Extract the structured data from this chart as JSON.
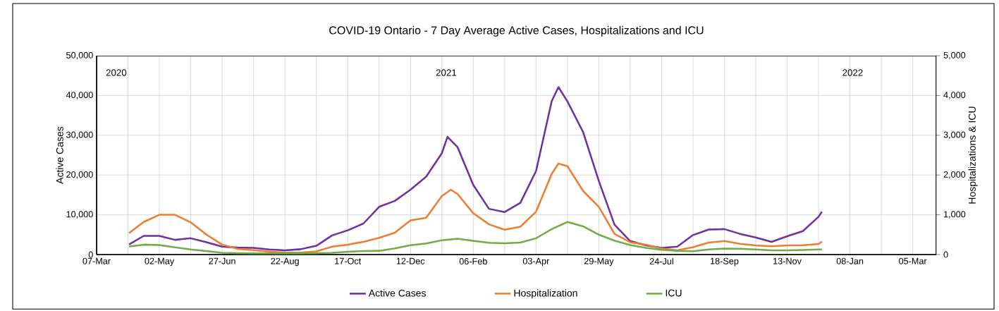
{
  "chart_data": {
    "type": "line",
    "title": "COVID-19 Ontario - 7 Day Average Active Cases, Hospitalizations and ICU",
    "ylabel": "Active Cases",
    "y2label": "Hospitalizations & ICU",
    "annotations": [
      "2020",
      "2021",
      "2022"
    ],
    "xlim": [
      "2020-03-07",
      "2022-03-26"
    ],
    "xticks": [
      {
        "value": "2020-03-07",
        "label": "07-Mar"
      },
      {
        "value": "2020-04-04",
        "label": null
      },
      {
        "value": "2020-05-02",
        "label": "02-May"
      },
      {
        "value": "2020-05-30",
        "label": null
      },
      {
        "value": "2020-06-27",
        "label": "27-Jun"
      },
      {
        "value": "2020-07-25",
        "label": null
      },
      {
        "value": "2020-08-22",
        "label": "22-Aug"
      },
      {
        "value": "2020-09-19",
        "label": null
      },
      {
        "value": "2020-10-17",
        "label": "17-Oct"
      },
      {
        "value": "2020-11-14",
        "label": null
      },
      {
        "value": "2020-12-12",
        "label": "12-Dec"
      },
      {
        "value": "2021-01-09",
        "label": null
      },
      {
        "value": "2021-02-06",
        "label": "06-Feb"
      },
      {
        "value": "2021-03-06",
        "label": null
      },
      {
        "value": "2021-04-03",
        "label": "03-Apr"
      },
      {
        "value": "2021-05-01",
        "label": null
      },
      {
        "value": "2021-05-29",
        "label": "29-May"
      },
      {
        "value": "2021-06-26",
        "label": null
      },
      {
        "value": "2021-07-24",
        "label": "24-Jul"
      },
      {
        "value": "2021-08-21",
        "label": null
      },
      {
        "value": "2021-09-18",
        "label": "18-Sep"
      },
      {
        "value": "2021-10-16",
        "label": null
      },
      {
        "value": "2021-11-13",
        "label": "13-Nov"
      },
      {
        "value": "2021-12-11",
        "label": null
      },
      {
        "value": "2022-01-08",
        "label": "08-Jan"
      },
      {
        "value": "2022-02-05",
        "label": null
      },
      {
        "value": "2022-03-05",
        "label": "05-Mar"
      }
    ],
    "ylim": [
      0,
      50000
    ],
    "yticks": [
      0,
      {
        "value": 10000,
        "label": "10,000"
      },
      {
        "value": 20000,
        "label": "20,000"
      },
      {
        "value": 30000,
        "label": "30,000"
      },
      {
        "value": 40000,
        "label": "40,000"
      },
      {
        "value": 50000,
        "label": "50,000"
      }
    ],
    "y2lim": [
      0,
      5000
    ],
    "y2ticks": [
      0,
      {
        "value": 1000,
        "label": "1,000"
      },
      {
        "value": 2000,
        "label": "2,000"
      },
      {
        "value": 3000,
        "label": "3,000"
      },
      {
        "value": 4000,
        "label": "4,000"
      },
      {
        "value": 5000,
        "label": "5,000"
      }
    ],
    "grid": true,
    "legend": "bottom",
    "marker": "none",
    "line_style": "solid",
    "series": [
      {
        "name": "Active Cases",
        "color": "#7030a0",
        "x": [
          "2020-04-05",
          "2020-04-18",
          "2020-05-02",
          "2020-05-16",
          "2020-05-30",
          "2020-06-13",
          "2020-06-27",
          "2020-07-11",
          "2020-07-25",
          "2020-08-08",
          "2020-08-22",
          "2020-09-05",
          "2020-09-19",
          "2020-10-03",
          "2020-10-17",
          "2020-10-31",
          "2020-11-14",
          "2020-11-28",
          "2020-12-12",
          "2020-12-26",
          "2021-01-09",
          "2021-01-14",
          "2021-01-23",
          "2021-02-06",
          "2021-02-20",
          "2021-03-06",
          "2021-03-20",
          "2021-04-03",
          "2021-04-17",
          "2021-04-23",
          "2021-05-01",
          "2021-05-15",
          "2021-05-29",
          "2021-06-12",
          "2021-06-26",
          "2021-07-10",
          "2021-07-24",
          "2021-08-07",
          "2021-08-21",
          "2021-09-04",
          "2021-09-18",
          "2021-10-02",
          "2021-10-16",
          "2021-10-30",
          "2021-11-13",
          "2021-11-27",
          "2021-12-11",
          "2021-12-14"
        ],
        "values": [
          2540,
          4700,
          4700,
          3700,
          4100,
          3100,
          2000,
          1750,
          1700,
          1300,
          1050,
          1350,
          2200,
          4800,
          6100,
          7800,
          12000,
          13500,
          16300,
          19600,
          25500,
          29600,
          27000,
          17500,
          11500,
          10700,
          13000,
          21000,
          38600,
          42100,
          38500,
          30800,
          18500,
          7500,
          3400,
          2300,
          1700,
          2000,
          4900,
          6300,
          6400,
          5200,
          4300,
          3200,
          4600,
          5900,
          9500,
          10800
        ]
      },
      {
        "name": "Hospitalization",
        "color": "#ed7d31",
        "axis": "y2",
        "x": [
          "2020-04-05",
          "2020-04-18",
          "2020-05-02",
          "2020-05-16",
          "2020-05-30",
          "2020-06-13",
          "2020-06-27",
          "2020-07-11",
          "2020-07-25",
          "2020-08-08",
          "2020-08-22",
          "2020-09-05",
          "2020-09-19",
          "2020-10-03",
          "2020-10-17",
          "2020-10-31",
          "2020-11-14",
          "2020-11-28",
          "2020-12-12",
          "2020-12-26",
          "2021-01-09",
          "2021-01-17",
          "2021-01-23",
          "2021-02-06",
          "2021-02-20",
          "2021-03-06",
          "2021-03-20",
          "2021-04-03",
          "2021-04-17",
          "2021-04-23",
          "2021-05-01",
          "2021-05-15",
          "2021-05-29",
          "2021-06-12",
          "2021-06-26",
          "2021-07-10",
          "2021-07-24",
          "2021-08-07",
          "2021-08-21",
          "2021-09-04",
          "2021-09-18",
          "2021-10-02",
          "2021-10-16",
          "2021-10-30",
          "2021-11-13",
          "2021-11-27",
          "2021-12-11",
          "2021-12-14"
        ],
        "values": [
          540,
          820,
          1000,
          1000,
          810,
          500,
          250,
          140,
          110,
          75,
          47,
          50,
          80,
          200,
          250,
          320,
          420,
          550,
          860,
          925,
          1470,
          1630,
          1520,
          1040,
          760,
          625,
          700,
          1080,
          2030,
          2290,
          2220,
          1600,
          1200,
          520,
          310,
          250,
          150,
          105,
          185,
          300,
          340,
          270,
          230,
          210,
          230,
          235,
          265,
          325
        ]
      },
      {
        "name": "ICU",
        "color": "#70ad47",
        "axis": "y2",
        "x": [
          "2020-04-05",
          "2020-04-18",
          "2020-05-02",
          "2020-05-16",
          "2020-05-30",
          "2020-06-13",
          "2020-06-27",
          "2020-07-11",
          "2020-07-25",
          "2020-08-08",
          "2020-08-22",
          "2020-09-05",
          "2020-09-19",
          "2020-10-03",
          "2020-10-17",
          "2020-10-31",
          "2020-11-14",
          "2020-11-28",
          "2020-12-12",
          "2020-12-26",
          "2021-01-09",
          "2021-01-23",
          "2021-02-06",
          "2021-02-20",
          "2021-03-06",
          "2021-03-20",
          "2021-04-03",
          "2021-04-17",
          "2021-05-01",
          "2021-05-15",
          "2021-05-29",
          "2021-06-12",
          "2021-06-26",
          "2021-07-10",
          "2021-07-24",
          "2021-08-07",
          "2021-08-21",
          "2021-09-04",
          "2021-09-18",
          "2021-10-02",
          "2021-10-16",
          "2021-10-30",
          "2021-11-13",
          "2021-11-27",
          "2021-12-11",
          "2021-12-14"
        ],
        "values": [
          205,
          250,
          240,
          180,
          130,
          90,
          45,
          35,
          30,
          30,
          30,
          30,
          35,
          45,
          70,
          90,
          95,
          155,
          235,
          280,
          360,
          400,
          345,
          295,
          285,
          300,
          410,
          640,
          820,
          710,
          500,
          350,
          240,
          170,
          120,
          95,
          85,
          130,
          150,
          145,
          130,
          105,
          105,
          115,
          130,
          130
        ]
      }
    ]
  }
}
